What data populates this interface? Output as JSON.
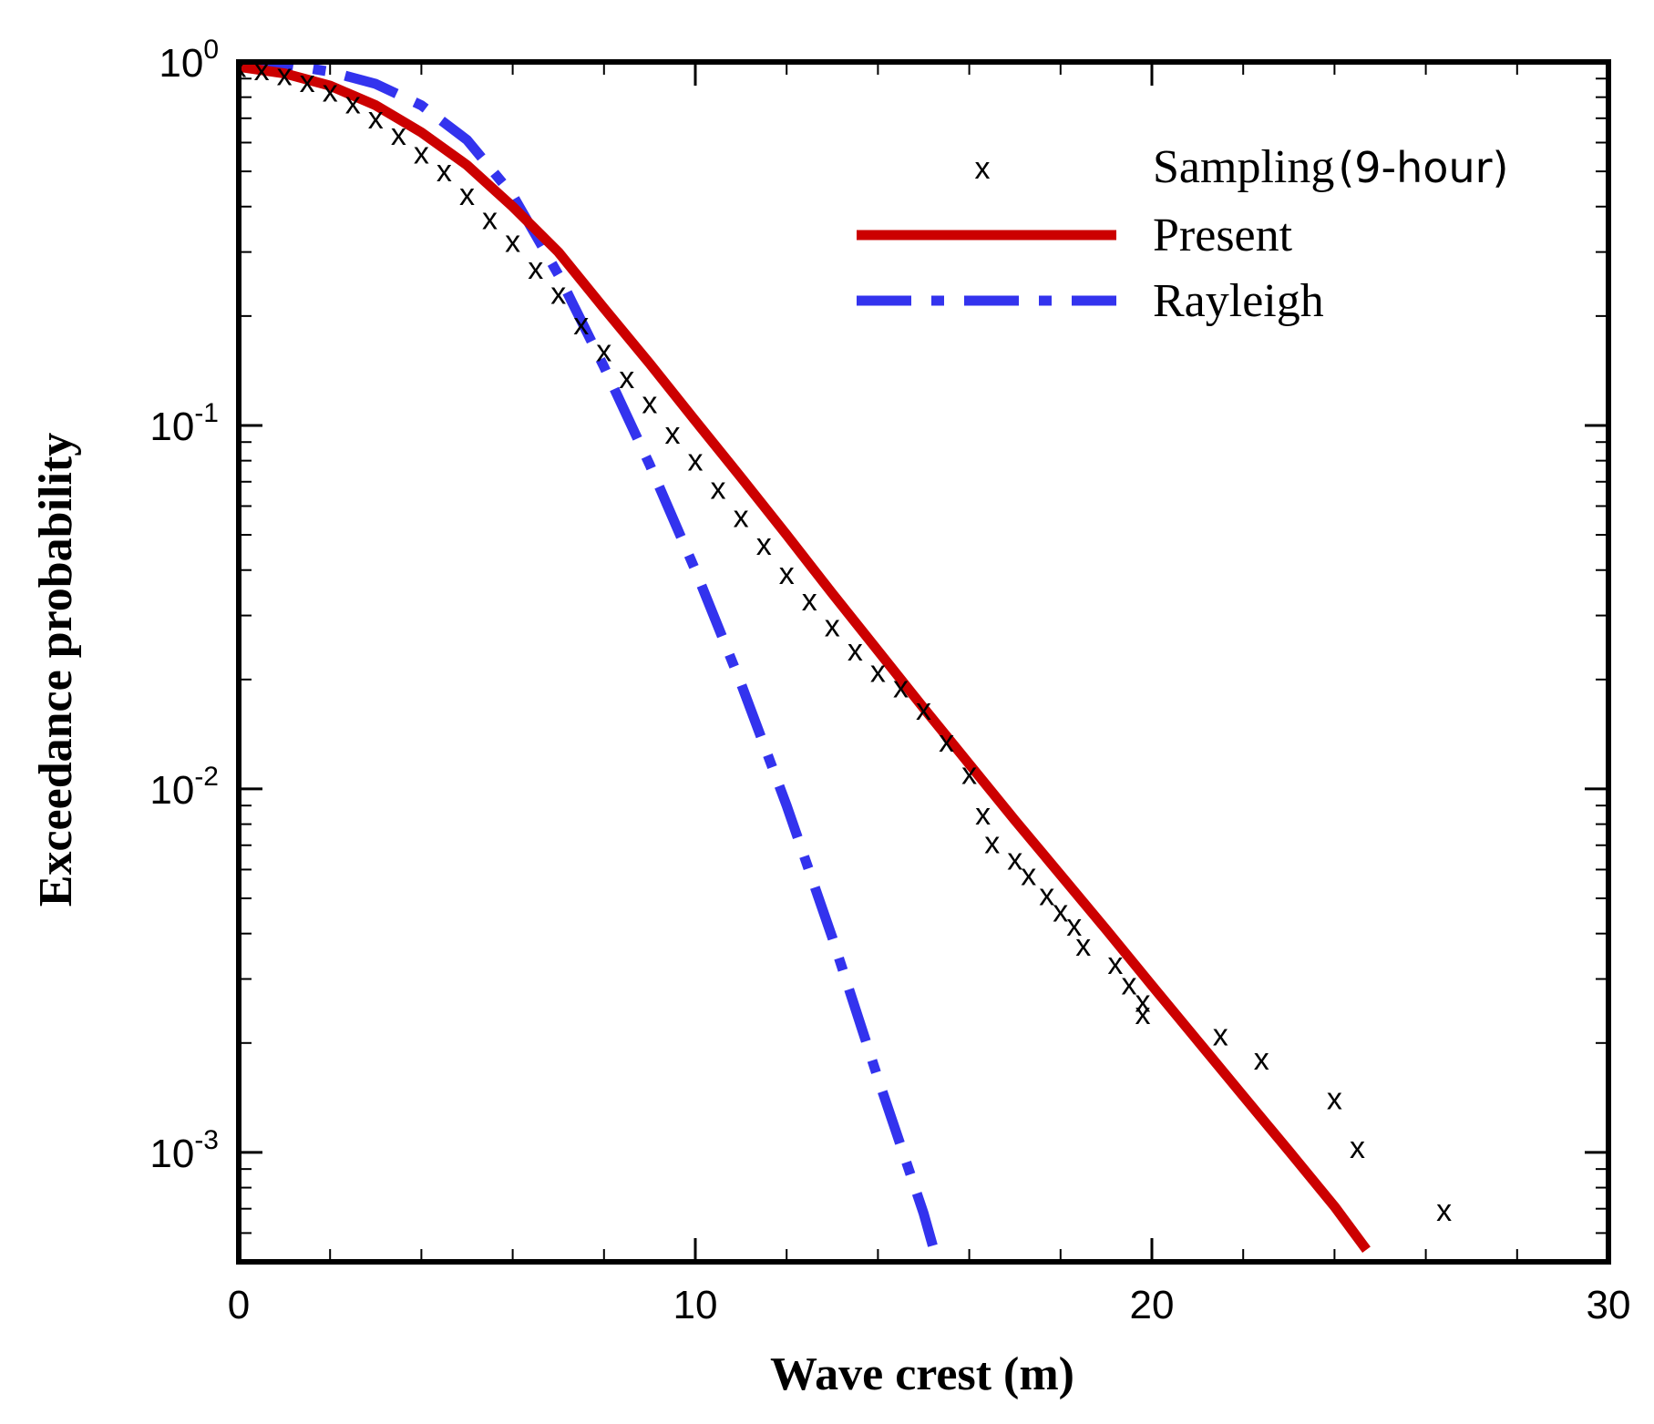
{
  "chart_data": {
    "type": "line",
    "title": "",
    "xlabel": "Wave crest (m)",
    "ylabel": "Exceedance probability",
    "xlim": [
      0,
      30
    ],
    "ylim": [
      0.0005,
      1
    ],
    "yscale": "log",
    "x_ticks": [
      "0",
      "10",
      "20",
      "30"
    ],
    "y_ticks": [
      {
        "base": "10",
        "exp": "0",
        "value": 1
      },
      {
        "base": "10",
        "exp": "-1",
        "value": 0.1
      },
      {
        "base": "10",
        "exp": "-2",
        "value": 0.01
      },
      {
        "base": "10",
        "exp": "-3",
        "value": 0.001
      }
    ],
    "grid": false,
    "legend_position": "top-right",
    "series": [
      {
        "name": "Sampling",
        "name_suffix": "(9-hour)",
        "kind": "scatter",
        "marker": "x",
        "color": "#000000",
        "points": [
          [
            0.0,
            0.97
          ],
          [
            0.5,
            0.95
          ],
          [
            1.0,
            0.92
          ],
          [
            1.5,
            0.88
          ],
          [
            2.0,
            0.83
          ],
          [
            2.5,
            0.77
          ],
          [
            3.0,
            0.7
          ],
          [
            3.5,
            0.63
          ],
          [
            4.0,
            0.56
          ],
          [
            4.5,
            0.5
          ],
          [
            5.0,
            0.43
          ],
          [
            5.5,
            0.37
          ],
          [
            6.0,
            0.32
          ],
          [
            6.5,
            0.27
          ],
          [
            7.0,
            0.23
          ],
          [
            7.5,
            0.19
          ],
          [
            8.0,
            0.16
          ],
          [
            8.5,
            0.135
          ],
          [
            9.0,
            0.115
          ],
          [
            9.5,
            0.095
          ],
          [
            10.0,
            0.08
          ],
          [
            10.5,
            0.067
          ],
          [
            11.0,
            0.056
          ],
          [
            11.5,
            0.047
          ],
          [
            12.0,
            0.039
          ],
          [
            12.5,
            0.033
          ],
          [
            13.0,
            0.028
          ],
          [
            13.5,
            0.024
          ],
          [
            14.0,
            0.021
          ],
          [
            14.5,
            0.019
          ],
          [
            15.0,
            0.0165
          ],
          [
            15.5,
            0.0135
          ],
          [
            16.0,
            0.011
          ],
          [
            16.3,
            0.0085
          ],
          [
            16.5,
            0.0071
          ],
          [
            17.0,
            0.0064
          ],
          [
            17.3,
            0.0058
          ],
          [
            17.7,
            0.0051
          ],
          [
            18.0,
            0.0046
          ],
          [
            18.3,
            0.0042
          ],
          [
            18.5,
            0.0037
          ],
          [
            19.2,
            0.0033
          ],
          [
            19.5,
            0.0029
          ],
          [
            19.8,
            0.0026
          ],
          [
            19.8,
            0.0024
          ],
          [
            21.5,
            0.0021
          ],
          [
            22.4,
            0.0018
          ],
          [
            24.0,
            0.0014
          ],
          [
            24.5,
            0.00103
          ],
          [
            26.4,
            0.00069
          ]
        ]
      },
      {
        "name": "Present",
        "kind": "line",
        "style": "solid",
        "color": "#cc0000",
        "points": [
          [
            0.0,
            0.97
          ],
          [
            1.0,
            0.93
          ],
          [
            2.0,
            0.86
          ],
          [
            3.0,
            0.76
          ],
          [
            4.0,
            0.64
          ],
          [
            5.0,
            0.52
          ],
          [
            6.0,
            0.4
          ],
          [
            7.0,
            0.3
          ],
          [
            8.0,
            0.21
          ],
          [
            9.0,
            0.148
          ],
          [
            10.0,
            0.103
          ],
          [
            11.0,
            0.072
          ],
          [
            12.0,
            0.05
          ],
          [
            13.0,
            0.0345
          ],
          [
            14.0,
            0.024
          ],
          [
            15.0,
            0.0167
          ],
          [
            16.0,
            0.0117
          ],
          [
            17.0,
            0.0082
          ],
          [
            18.0,
            0.0058
          ],
          [
            19.0,
            0.0041
          ],
          [
            20.0,
            0.00288
          ],
          [
            21.0,
            0.00203
          ],
          [
            22.0,
            0.00143
          ],
          [
            23.0,
            0.00101
          ],
          [
            24.0,
            0.00071
          ],
          [
            24.7,
            0.00054
          ]
        ]
      },
      {
        "name": "Rayleigh",
        "kind": "line",
        "style": "dash-dot",
        "color": "#3333ee",
        "points": [
          [
            0.0,
            1.0
          ],
          [
            1.0,
            0.985
          ],
          [
            2.0,
            0.94
          ],
          [
            3.0,
            0.87
          ],
          [
            4.0,
            0.76
          ],
          [
            5.0,
            0.61
          ],
          [
            6.0,
            0.43
          ],
          [
            7.0,
            0.26
          ],
          [
            8.0,
            0.145
          ],
          [
            9.0,
            0.078
          ],
          [
            10.0,
            0.04
          ],
          [
            11.0,
            0.0195
          ],
          [
            12.0,
            0.009
          ],
          [
            13.0,
            0.0039
          ],
          [
            14.0,
            0.0016
          ],
          [
            15.0,
            0.00068
          ],
          [
            15.3,
            0.0005
          ]
        ]
      }
    ]
  }
}
